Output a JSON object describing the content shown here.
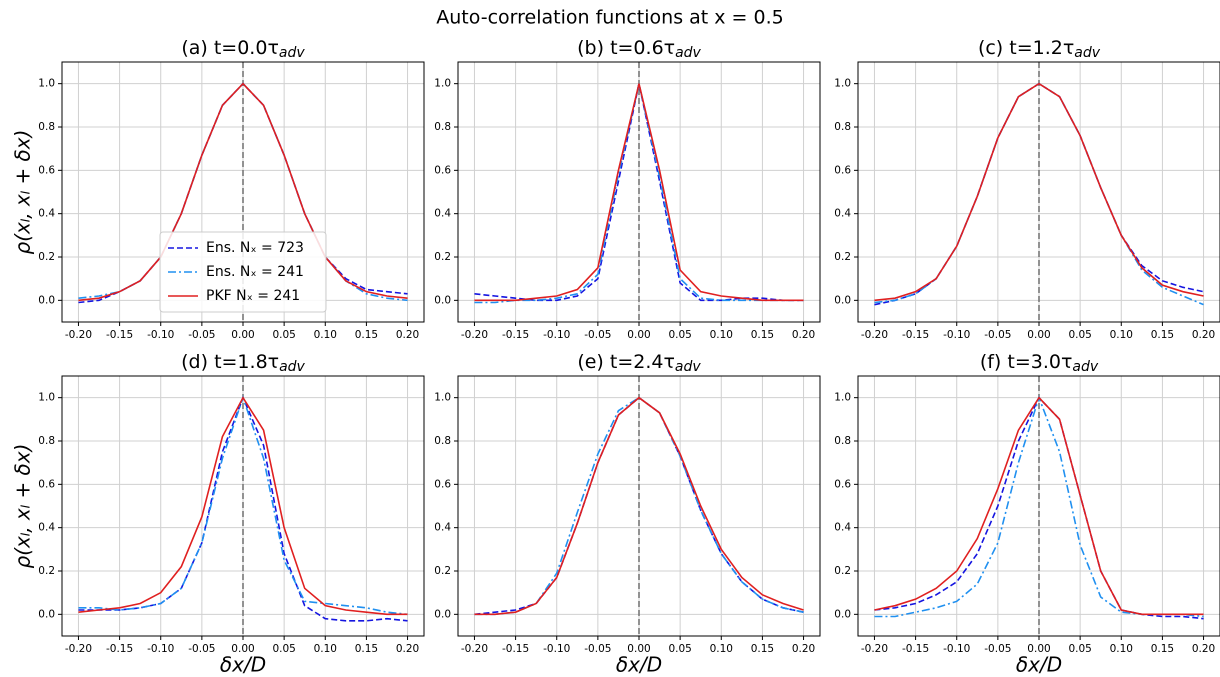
{
  "suptitle": "Auto-correlation functions at x = 0.5",
  "chart_data": [
    {
      "type": "line",
      "title": "(a) t=0.0τ",
      "title_sub": "adv",
      "ylabel": "ρ(xₗ, xₗ + δx)",
      "legend": "lower center",
      "grid": true,
      "vline": 0,
      "xlim": [
        -0.22,
        0.22
      ],
      "ylim": [
        -0.1,
        1.1
      ],
      "xticks": [
        {
          "value": -0.2,
          "label": "-0.20"
        },
        {
          "value": -0.15,
          "label": "-0.15"
        },
        {
          "value": -0.1,
          "label": "-0.10"
        },
        {
          "value": -0.05,
          "label": "-0.05"
        },
        {
          "value": 0,
          "label": "0.00"
        },
        {
          "value": 0.05,
          "label": "0.05"
        },
        {
          "value": 0.1,
          "label": "0.10"
        },
        {
          "value": 0.15,
          "label": "0.15"
        },
        {
          "value": 0.2,
          "label": "0.20"
        }
      ],
      "yticks": [
        {
          "value": 0,
          "label": "0.0"
        },
        {
          "value": 0.2,
          "label": "0.2"
        },
        {
          "value": 0.4,
          "label": "0.4"
        },
        {
          "value": 0.6,
          "label": "0.6"
        },
        {
          "value": 0.8,
          "label": "0.8"
        },
        {
          "value": 1,
          "label": "1.0"
        }
      ],
      "x": [
        -0.2,
        -0.175,
        -0.15,
        -0.125,
        -0.1,
        -0.075,
        -0.05,
        -0.025,
        0,
        0.025,
        0.05,
        0.075,
        0.1,
        0.125,
        0.15,
        0.175,
        0.2
      ],
      "series": [
        {
          "name": "Ens. Nₓ = 723",
          "color": "#1515e0",
          "style": "dashed",
          "values": [
            -0.01,
            0.0,
            0.04,
            0.09,
            0.2,
            0.4,
            0.67,
            0.9,
            1,
            0.9,
            0.67,
            0.4,
            0.2,
            0.1,
            0.05,
            0.04,
            0.03
          ]
        },
        {
          "name": "Ens. Nₓ = 241",
          "color": "#2090f0",
          "style": "dashdot",
          "values": [
            0.01,
            0.02,
            0.04,
            0.09,
            0.2,
            0.4,
            0.67,
            0.9,
            1,
            0.9,
            0.67,
            0.4,
            0.2,
            0.09,
            0.03,
            0.01,
            0.0
          ]
        },
        {
          "name": "PKF Nₓ = 241",
          "color": "#e02020",
          "style": "solid",
          "values": [
            0.0,
            0.01,
            0.04,
            0.09,
            0.2,
            0.4,
            0.67,
            0.9,
            1,
            0.9,
            0.67,
            0.4,
            0.2,
            0.09,
            0.04,
            0.02,
            0.01
          ]
        }
      ]
    },
    {
      "type": "line",
      "title": "(b) t=0.6τ",
      "title_sub": "adv",
      "grid": true,
      "vline": 0,
      "xlim": [
        -0.22,
        0.22
      ],
      "ylim": [
        -0.1,
        1.1
      ],
      "xticks": [
        {
          "value": -0.2,
          "label": "-0.20"
        },
        {
          "value": -0.15,
          "label": "-0.15"
        },
        {
          "value": -0.1,
          "label": "-0.10"
        },
        {
          "value": -0.05,
          "label": "-0.05"
        },
        {
          "value": 0,
          "label": "0.00"
        },
        {
          "value": 0.05,
          "label": "0.05"
        },
        {
          "value": 0.1,
          "label": "0.10"
        },
        {
          "value": 0.15,
          "label": "0.15"
        },
        {
          "value": 0.2,
          "label": "0.20"
        }
      ],
      "yticks": [
        {
          "value": 0,
          "label": "0.0"
        },
        {
          "value": 0.2,
          "label": "0.2"
        },
        {
          "value": 0.4,
          "label": "0.4"
        },
        {
          "value": 0.6,
          "label": "0.6"
        },
        {
          "value": 0.8,
          "label": "0.8"
        },
        {
          "value": 1,
          "label": "1.0"
        }
      ],
      "x": [
        -0.2,
        -0.175,
        -0.15,
        -0.125,
        -0.1,
        -0.075,
        -0.05,
        -0.025,
        0,
        0.025,
        0.05,
        0.075,
        0.1,
        0.125,
        0.15,
        0.175,
        0.2
      ],
      "series": [
        {
          "color": "#1515e0",
          "style": "dashed",
          "values": [
            0.03,
            0.02,
            0.01,
            0.0,
            0.0,
            0.02,
            0.1,
            0.55,
            1,
            0.55,
            0.08,
            0.0,
            0.0,
            0.01,
            0.01,
            0.0,
            0.0
          ]
        },
        {
          "color": "#2090f0",
          "style": "dashdot",
          "values": [
            -0.01,
            -0.01,
            0.0,
            0.0,
            0.01,
            0.03,
            0.12,
            0.58,
            1,
            0.57,
            0.1,
            0.01,
            0.0,
            0.0,
            0.0,
            0.0,
            0.0
          ]
        },
        {
          "color": "#e02020",
          "style": "solid",
          "values": [
            0.0,
            0.0,
            0.0,
            0.01,
            0.02,
            0.05,
            0.15,
            0.6,
            1,
            0.6,
            0.14,
            0.04,
            0.02,
            0.01,
            0.0,
            0.0,
            0.0
          ]
        }
      ]
    },
    {
      "type": "line",
      "title": "(c) t=1.2τ",
      "title_sub": "adv",
      "grid": true,
      "vline": 0,
      "xlim": [
        -0.22,
        0.22
      ],
      "ylim": [
        -0.1,
        1.1
      ],
      "xticks": [
        {
          "value": -0.2,
          "label": "-0.20"
        },
        {
          "value": -0.15,
          "label": "-0.15"
        },
        {
          "value": -0.1,
          "label": "-0.10"
        },
        {
          "value": -0.05,
          "label": "-0.05"
        },
        {
          "value": 0,
          "label": "0.00"
        },
        {
          "value": 0.05,
          "label": "0.05"
        },
        {
          "value": 0.1,
          "label": "0.10"
        },
        {
          "value": 0.15,
          "label": "0.15"
        },
        {
          "value": 0.2,
          "label": "0.20"
        }
      ],
      "yticks": [
        {
          "value": 0,
          "label": "0.0"
        },
        {
          "value": 0.2,
          "label": "0.2"
        },
        {
          "value": 0.4,
          "label": "0.4"
        },
        {
          "value": 0.6,
          "label": "0.6"
        },
        {
          "value": 0.8,
          "label": "0.8"
        },
        {
          "value": 1,
          "label": "1.0"
        }
      ],
      "x": [
        -0.2,
        -0.175,
        -0.15,
        -0.125,
        -0.1,
        -0.075,
        -0.05,
        -0.025,
        0,
        0.025,
        0.05,
        0.075,
        0.1,
        0.125,
        0.15,
        0.175,
        0.2
      ],
      "series": [
        {
          "color": "#1515e0",
          "style": "dashed",
          "values": [
            -0.02,
            0.0,
            0.03,
            0.1,
            0.25,
            0.48,
            0.75,
            0.94,
            1,
            0.94,
            0.76,
            0.52,
            0.3,
            0.16,
            0.09,
            0.06,
            0.04
          ]
        },
        {
          "color": "#2090f0",
          "style": "dashdot",
          "values": [
            -0.01,
            0.0,
            0.03,
            0.1,
            0.25,
            0.48,
            0.75,
            0.94,
            1,
            0.94,
            0.76,
            0.52,
            0.3,
            0.14,
            0.06,
            0.02,
            -0.02
          ]
        },
        {
          "color": "#e02020",
          "style": "solid",
          "values": [
            0.0,
            0.01,
            0.04,
            0.1,
            0.25,
            0.48,
            0.75,
            0.94,
            1,
            0.94,
            0.76,
            0.52,
            0.3,
            0.15,
            0.07,
            0.04,
            0.02
          ]
        }
      ]
    },
    {
      "type": "line",
      "title": "(d) t=1.8τ",
      "title_sub": "adv",
      "ylabel": "ρ(xₗ, xₗ + δx)",
      "xlabel": "δx/D",
      "grid": true,
      "vline": 0,
      "xlim": [
        -0.22,
        0.22
      ],
      "ylim": [
        -0.1,
        1.1
      ],
      "xticks": [
        {
          "value": -0.2,
          "label": "-0.20"
        },
        {
          "value": -0.15,
          "label": "-0.15"
        },
        {
          "value": -0.1,
          "label": "-0.10"
        },
        {
          "value": -0.05,
          "label": "-0.05"
        },
        {
          "value": 0,
          "label": "0.00"
        },
        {
          "value": 0.05,
          "label": "0.05"
        },
        {
          "value": 0.1,
          "label": "0.10"
        },
        {
          "value": 0.15,
          "label": "0.15"
        },
        {
          "value": 0.2,
          "label": "0.20"
        }
      ],
      "yticks": [
        {
          "value": 0,
          "label": "0.0"
        },
        {
          "value": 0.2,
          "label": "0.2"
        },
        {
          "value": 0.4,
          "label": "0.4"
        },
        {
          "value": 0.6,
          "label": "0.6"
        },
        {
          "value": 0.8,
          "label": "0.8"
        },
        {
          "value": 1,
          "label": "1.0"
        }
      ],
      "x": [
        -0.2,
        -0.175,
        -0.15,
        -0.125,
        -0.1,
        -0.075,
        -0.05,
        -0.025,
        0,
        0.025,
        0.05,
        0.075,
        0.1,
        0.125,
        0.15,
        0.175,
        0.2
      ],
      "series": [
        {
          "color": "#1515e0",
          "style": "dashed",
          "values": [
            0.02,
            0.02,
            0.02,
            0.03,
            0.05,
            0.12,
            0.33,
            0.75,
            1,
            0.78,
            0.28,
            0.04,
            -0.02,
            -0.03,
            -0.03,
            -0.02,
            -0.03
          ]
        },
        {
          "color": "#2090f0",
          "style": "dashdot",
          "values": [
            0.03,
            0.03,
            0.02,
            0.03,
            0.05,
            0.12,
            0.33,
            0.72,
            1,
            0.72,
            0.25,
            0.06,
            0.05,
            0.04,
            0.03,
            0.01,
            0.0
          ]
        },
        {
          "color": "#e02020",
          "style": "solid",
          "values": [
            0.01,
            0.02,
            0.03,
            0.05,
            0.1,
            0.22,
            0.45,
            0.82,
            1,
            0.85,
            0.4,
            0.12,
            0.04,
            0.02,
            0.01,
            0.0,
            0.0
          ]
        }
      ]
    },
    {
      "type": "line",
      "title": "(e) t=2.4τ",
      "title_sub": "adv",
      "xlabel": "δx/D",
      "grid": true,
      "vline": 0,
      "xlim": [
        -0.22,
        0.22
      ],
      "ylim": [
        -0.1,
        1.1
      ],
      "xticks": [
        {
          "value": -0.2,
          "label": "-0.20"
        },
        {
          "value": -0.15,
          "label": "-0.15"
        },
        {
          "value": -0.1,
          "label": "-0.10"
        },
        {
          "value": -0.05,
          "label": "-0.05"
        },
        {
          "value": 0,
          "label": "0.00"
        },
        {
          "value": 0.05,
          "label": "0.05"
        },
        {
          "value": 0.1,
          "label": "0.10"
        },
        {
          "value": 0.15,
          "label": "0.15"
        },
        {
          "value": 0.2,
          "label": "0.20"
        }
      ],
      "yticks": [
        {
          "value": 0,
          "label": "0.0"
        },
        {
          "value": 0.2,
          "label": "0.2"
        },
        {
          "value": 0.4,
          "label": "0.4"
        },
        {
          "value": 0.6,
          "label": "0.6"
        },
        {
          "value": 0.8,
          "label": "0.8"
        },
        {
          "value": 1,
          "label": "1.0"
        }
      ],
      "x": [
        -0.2,
        -0.175,
        -0.15,
        -0.125,
        -0.1,
        -0.075,
        -0.05,
        -0.025,
        0,
        0.025,
        0.05,
        0.075,
        0.1,
        0.125,
        0.15,
        0.175,
        0.2
      ],
      "series": [
        {
          "color": "#1515e0",
          "style": "dashed",
          "values": [
            0.0,
            0.01,
            0.02,
            0.05,
            0.17,
            0.42,
            0.7,
            0.92,
            1,
            0.93,
            0.73,
            0.48,
            0.28,
            0.15,
            0.07,
            0.03,
            0.01
          ]
        },
        {
          "color": "#2090f0",
          "style": "dashdot",
          "values": [
            0.0,
            0.0,
            0.01,
            0.05,
            0.19,
            0.47,
            0.74,
            0.94,
            1,
            0.93,
            0.73,
            0.48,
            0.28,
            0.15,
            0.07,
            0.03,
            0.01
          ]
        },
        {
          "color": "#e02020",
          "style": "solid",
          "values": [
            0.0,
            0.0,
            0.01,
            0.05,
            0.17,
            0.42,
            0.7,
            0.92,
            1,
            0.93,
            0.74,
            0.5,
            0.3,
            0.17,
            0.09,
            0.05,
            0.02
          ]
        }
      ]
    },
    {
      "type": "line",
      "title": "(f) t=3.0τ",
      "title_sub": "adv",
      "xlabel": "δx/D",
      "grid": true,
      "vline": 0,
      "xlim": [
        -0.22,
        0.22
      ],
      "ylim": [
        -0.1,
        1.1
      ],
      "xticks": [
        {
          "value": -0.2,
          "label": "-0.20"
        },
        {
          "value": -0.15,
          "label": "-0.15"
        },
        {
          "value": -0.1,
          "label": "-0.10"
        },
        {
          "value": -0.05,
          "label": "-0.05"
        },
        {
          "value": 0,
          "label": "0.00"
        },
        {
          "value": 0.05,
          "label": "0.05"
        },
        {
          "value": 0.1,
          "label": "0.10"
        },
        {
          "value": 0.15,
          "label": "0.15"
        },
        {
          "value": 0.2,
          "label": "0.20"
        }
      ],
      "yticks": [
        {
          "value": 0,
          "label": "0.0"
        },
        {
          "value": 0.2,
          "label": "0.2"
        },
        {
          "value": 0.4,
          "label": "0.4"
        },
        {
          "value": 0.6,
          "label": "0.6"
        },
        {
          "value": 0.8,
          "label": "0.8"
        },
        {
          "value": 1,
          "label": "1.0"
        }
      ],
      "x": [
        -0.2,
        -0.175,
        -0.15,
        -0.125,
        -0.1,
        -0.075,
        -0.05,
        -0.025,
        0,
        0.025,
        0.05,
        0.075,
        0.1,
        0.125,
        0.15,
        0.175,
        0.2
      ],
      "series": [
        {
          "color": "#1515e0",
          "style": "dashed",
          "values": [
            0.02,
            0.03,
            0.05,
            0.09,
            0.15,
            0.28,
            0.5,
            0.8,
            1,
            0.9,
            0.55,
            0.2,
            0.02,
            0.0,
            -0.01,
            -0.01,
            -0.02
          ]
        },
        {
          "color": "#2090f0",
          "style": "dashdot",
          "values": [
            -0.01,
            -0.01,
            0.01,
            0.03,
            0.06,
            0.14,
            0.33,
            0.7,
            1,
            0.75,
            0.32,
            0.08,
            0.01,
            0.0,
            0.0,
            0.0,
            -0.01
          ]
        },
        {
          "color": "#e02020",
          "style": "solid",
          "values": [
            0.02,
            0.04,
            0.07,
            0.12,
            0.2,
            0.35,
            0.58,
            0.85,
            1,
            0.9,
            0.55,
            0.2,
            0.02,
            0.0,
            0.0,
            0.0,
            0.0
          ]
        }
      ]
    }
  ]
}
